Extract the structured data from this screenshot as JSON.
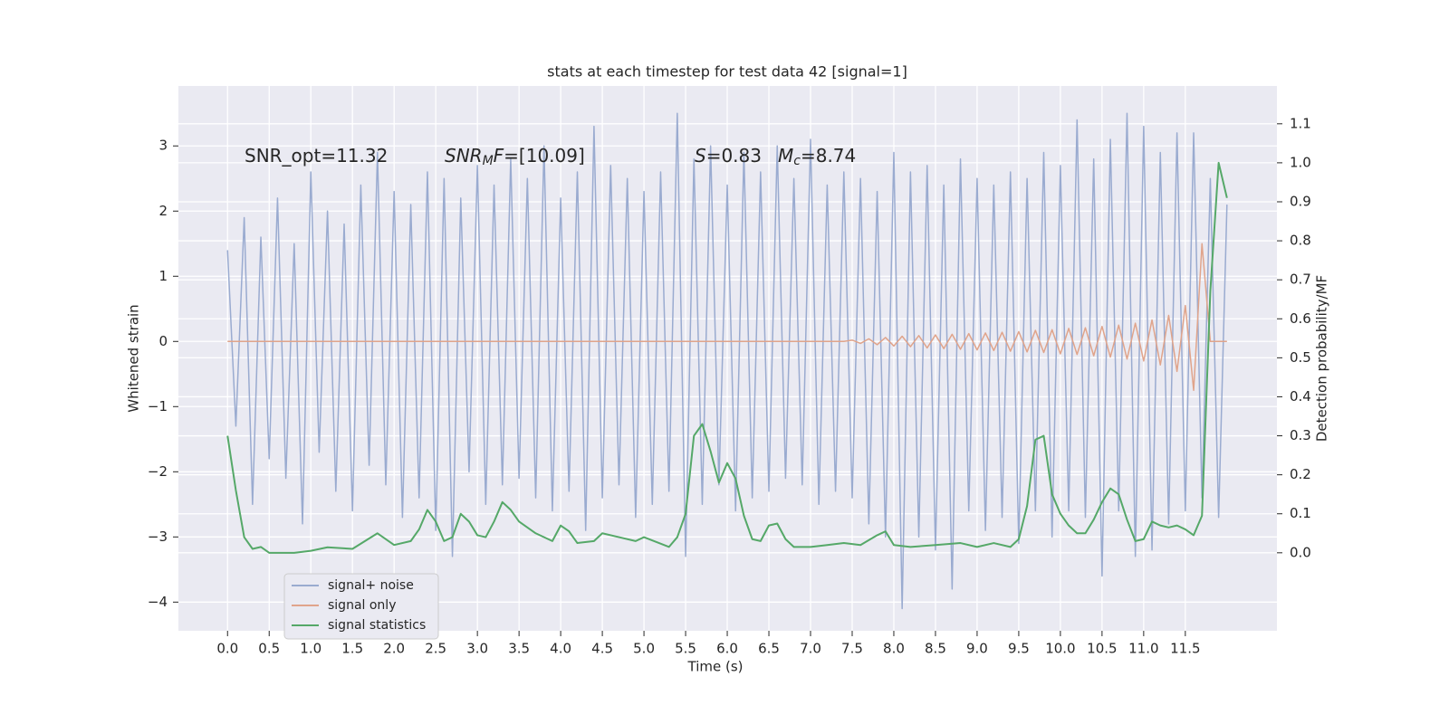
{
  "chart_data": {
    "type": "line",
    "title": "stats at each timestep for test data 42 [signal=1]",
    "xlabel": "Time (s)",
    "ylabel": "Whitened strain",
    "y2label": "Detection probability/MF",
    "annotations": [
      [
        "SNR_opt=11.32"
      ],
      [
        "SNR",
        "M",
        "F",
        "=[10.09]"
      ],
      [
        "S",
        "=0.83"
      ],
      [
        "M",
        "c",
        "=8.74"
      ]
    ],
    "grid": true,
    "legend": "lower left",
    "xlim": [
      -0.59,
      12.6
    ],
    "ylim": [
      -4.44,
      3.92
    ],
    "y2lim": [
      -0.2,
      1.197
    ],
    "xticks": [
      {
        "value": 0,
        "label": "0.0"
      },
      0.5,
      {
        "value": 1,
        "label": "1.0"
      },
      1.5,
      {
        "value": 2,
        "label": "2.0"
      },
      2.5,
      {
        "value": 3,
        "label": "3.0"
      },
      3.5,
      {
        "value": 4,
        "label": "4.0"
      },
      4.5,
      {
        "value": 5,
        "label": "5.0"
      },
      5.5,
      {
        "value": 6,
        "label": "6.0"
      },
      6.5,
      {
        "value": 7,
        "label": "7.0"
      },
      7.5,
      {
        "value": 8,
        "label": "8.0"
      },
      8.5,
      {
        "value": 9,
        "label": "9.0"
      },
      9.5,
      {
        "value": 10,
        "label": "10.0"
      },
      10.5,
      {
        "value": 11,
        "label": "11.0"
      },
      11.5
    ],
    "yticks": [
      {
        "value": -4,
        "label": "−4"
      },
      {
        "value": -3,
        "label": "−3"
      },
      {
        "value": -2,
        "label": "−2"
      },
      {
        "value": -1,
        "label": "−1"
      },
      0,
      1,
      2,
      3
    ],
    "y2ticks": [
      {
        "value": 0,
        "label": "0.0"
      },
      0.1,
      0.2,
      0.3,
      0.4,
      0.5,
      0.6,
      0.7,
      0.8,
      0.9,
      {
        "value": 1,
        "label": "1.0"
      },
      1.1
    ],
    "x": [
      0,
      0.1,
      0.2,
      0.3,
      0.4,
      0.5,
      0.6,
      0.7,
      0.8,
      0.9,
      1,
      1.1,
      1.2,
      1.3,
      1.4,
      1.5,
      1.6,
      1.7,
      1.8,
      1.9,
      2,
      2.1,
      2.2,
      2.3,
      2.4,
      2.5,
      2.6,
      2.7,
      2.8,
      2.9,
      3,
      3.1,
      3.2,
      3.3,
      3.4,
      3.5,
      3.6,
      3.7,
      3.8,
      3.9,
      4,
      4.1,
      4.2,
      4.3,
      4.4,
      4.5,
      4.6,
      4.7,
      4.8,
      4.9,
      5,
      5.1,
      5.2,
      5.3,
      5.4,
      5.5,
      5.6,
      5.7,
      5.8,
      5.9,
      6,
      6.1,
      6.2,
      6.3,
      6.4,
      6.5,
      6.6,
      6.7,
      6.8,
      6.9,
      7,
      7.1,
      7.2,
      7.3,
      7.4,
      7.5,
      7.6,
      7.7,
      7.8,
      7.9,
      8,
      8.1,
      8.2,
      8.3,
      8.4,
      8.5,
      8.6,
      8.7,
      8.8,
      8.9,
      9,
      9.1,
      9.2,
      9.3,
      9.4,
      9.5,
      9.6,
      9.7,
      9.8,
      9.9,
      10,
      10.1,
      10.2,
      10.3,
      10.4,
      10.5,
      10.6,
      10.7,
      10.8,
      10.9,
      11,
      11.1,
      11.2,
      11.3,
      11.4,
      11.5,
      11.6,
      11.7,
      11.8,
      11.9,
      12
    ],
    "series": [
      {
        "name": "signal+ noise",
        "color": "#9aabd0",
        "values": [
          1.4,
          -1.3,
          1.9,
          -2.5,
          1.6,
          -1.8,
          2.2,
          -2.1,
          1.5,
          -2.8,
          2.6,
          -1.7,
          2.0,
          -2.3,
          1.8,
          -2.6,
          2.4,
          -1.9,
          2.9,
          -2.2,
          2.3,
          -2.7,
          2.1,
          -2.4,
          2.6,
          -2.9,
          2.5,
          -3.3,
          2.2,
          -2.0,
          2.7,
          -2.5,
          2.4,
          -2.2,
          2.8,
          -2.1,
          2.5,
          -2.4,
          3.0,
          -2.6,
          2.2,
          -2.3,
          2.6,
          -2.9,
          3.3,
          -2.4,
          2.7,
          -2.2,
          2.5,
          -2.7,
          2.3,
          -2.5,
          2.6,
          -2.3,
          3.5,
          -3.3,
          2.8,
          -2.5,
          3.0,
          -2.2,
          2.4,
          -2.6,
          2.9,
          -2.4,
          2.6,
          -2.3,
          3.0,
          -2.1,
          2.5,
          -2.2,
          3.1,
          -2.5,
          2.4,
          -2.3,
          2.6,
          -2.4,
          2.5,
          -2.8,
          2.3,
          -3.0,
          2.9,
          -4.1,
          2.6,
          -3.0,
          2.7,
          -3.2,
          2.4,
          -3.8,
          2.8,
          -2.6,
          2.5,
          -2.9,
          2.4,
          -2.7,
          2.6,
          -3.1,
          2.5,
          -2.6,
          2.9,
          -3.0,
          2.7,
          -2.6,
          3.4,
          -2.7,
          2.8,
          -3.6,
          3.1,
          -2.6,
          3.5,
          -3.3,
          3.3,
          -3.2,
          2.9,
          -2.8,
          3.2,
          -2.6,
          3.2,
          -2.4,
          2.5,
          -2.7,
          2.1
        ]
      },
      {
        "name": "signal only",
        "color": "#e0a48b",
        "values": [
          0,
          0,
          0,
          0,
          0,
          0,
          0,
          0,
          0,
          0,
          0,
          0,
          0,
          0,
          0,
          0,
          0,
          0,
          0,
          0,
          0,
          0,
          0,
          0,
          0,
          0,
          0,
          0,
          0,
          0,
          0,
          0,
          0,
          0,
          0,
          0,
          0,
          0,
          0,
          0,
          0,
          0,
          0,
          0,
          0,
          0,
          0,
          0,
          0,
          0,
          0,
          0,
          0,
          0,
          0,
          0,
          0,
          0,
          0,
          0,
          0,
          0,
          0,
          0,
          0,
          0,
          0,
          0,
          0,
          0,
          0,
          0,
          0,
          0,
          0,
          0.02,
          -0.03,
          0.04,
          -0.05,
          0.06,
          -0.07,
          0.08,
          -0.08,
          0.09,
          -0.1,
          0.1,
          -0.11,
          0.11,
          -0.12,
          0.12,
          -0.13,
          0.13,
          -0.14,
          0.14,
          -0.15,
          0.15,
          -0.16,
          0.17,
          -0.17,
          0.18,
          -0.19,
          0.2,
          -0.2,
          0.21,
          -0.22,
          0.23,
          -0.24,
          0.25,
          -0.27,
          0.28,
          -0.3,
          0.33,
          -0.36,
          0.4,
          -0.46,
          0.55,
          -0.75,
          1.5,
          0,
          0,
          0
        ]
      },
      {
        "name": "signal statistics",
        "color": "#55a868",
        "axis": "y2",
        "x": [
          0,
          0.1,
          0.2,
          0.3,
          0.4,
          0.5,
          0.6,
          0.8,
          1.0,
          1.2,
          1.5,
          1.8,
          2.0,
          2.2,
          2.3,
          2.4,
          2.5,
          2.6,
          2.7,
          2.8,
          2.9,
          3.0,
          3.1,
          3.2,
          3.3,
          3.4,
          3.5,
          3.7,
          3.9,
          4.0,
          4.1,
          4.2,
          4.4,
          4.5,
          4.7,
          4.9,
          5.0,
          5.3,
          5.4,
          5.5,
          5.6,
          5.7,
          5.8,
          5.9,
          6.0,
          6.1,
          6.2,
          6.3,
          6.4,
          6.5,
          6.6,
          6.7,
          6.8,
          7.0,
          7.2,
          7.4,
          7.6,
          7.8,
          7.9,
          8.0,
          8.2,
          8.5,
          8.8,
          9.0,
          9.2,
          9.4,
          9.5,
          9.6,
          9.7,
          9.8,
          9.9,
          10.0,
          10.1,
          10.2,
          10.3,
          10.4,
          10.5,
          10.6,
          10.7,
          10.8,
          10.9,
          11.0,
          11.1,
          11.2,
          11.3,
          11.4,
          11.5,
          11.6,
          11.7,
          11.8,
          11.9,
          12.0
        ],
        "values": [
          0.3,
          0.16,
          0.04,
          0.01,
          0.015,
          0.0,
          0.0,
          0.0,
          0.005,
          0.014,
          0.01,
          0.05,
          0.02,
          0.03,
          0.06,
          0.11,
          0.08,
          0.03,
          0.04,
          0.1,
          0.08,
          0.045,
          0.04,
          0.08,
          0.13,
          0.11,
          0.08,
          0.05,
          0.03,
          0.07,
          0.055,
          0.025,
          0.03,
          0.05,
          0.04,
          0.03,
          0.04,
          0.015,
          0.04,
          0.1,
          0.3,
          0.33,
          0.26,
          0.18,
          0.23,
          0.19,
          0.095,
          0.035,
          0.03,
          0.07,
          0.075,
          0.035,
          0.015,
          0.015,
          0.02,
          0.025,
          0.02,
          0.045,
          0.055,
          0.02,
          0.015,
          0.02,
          0.025,
          0.015,
          0.025,
          0.015,
          0.035,
          0.12,
          0.29,
          0.3,
          0.15,
          0.1,
          0.07,
          0.05,
          0.05,
          0.085,
          0.13,
          0.165,
          0.15,
          0.085,
          0.03,
          0.035,
          0.08,
          0.07,
          0.065,
          0.07,
          0.06,
          0.045,
          0.095,
          0.67,
          1.0,
          0.91
        ]
      }
    ]
  }
}
